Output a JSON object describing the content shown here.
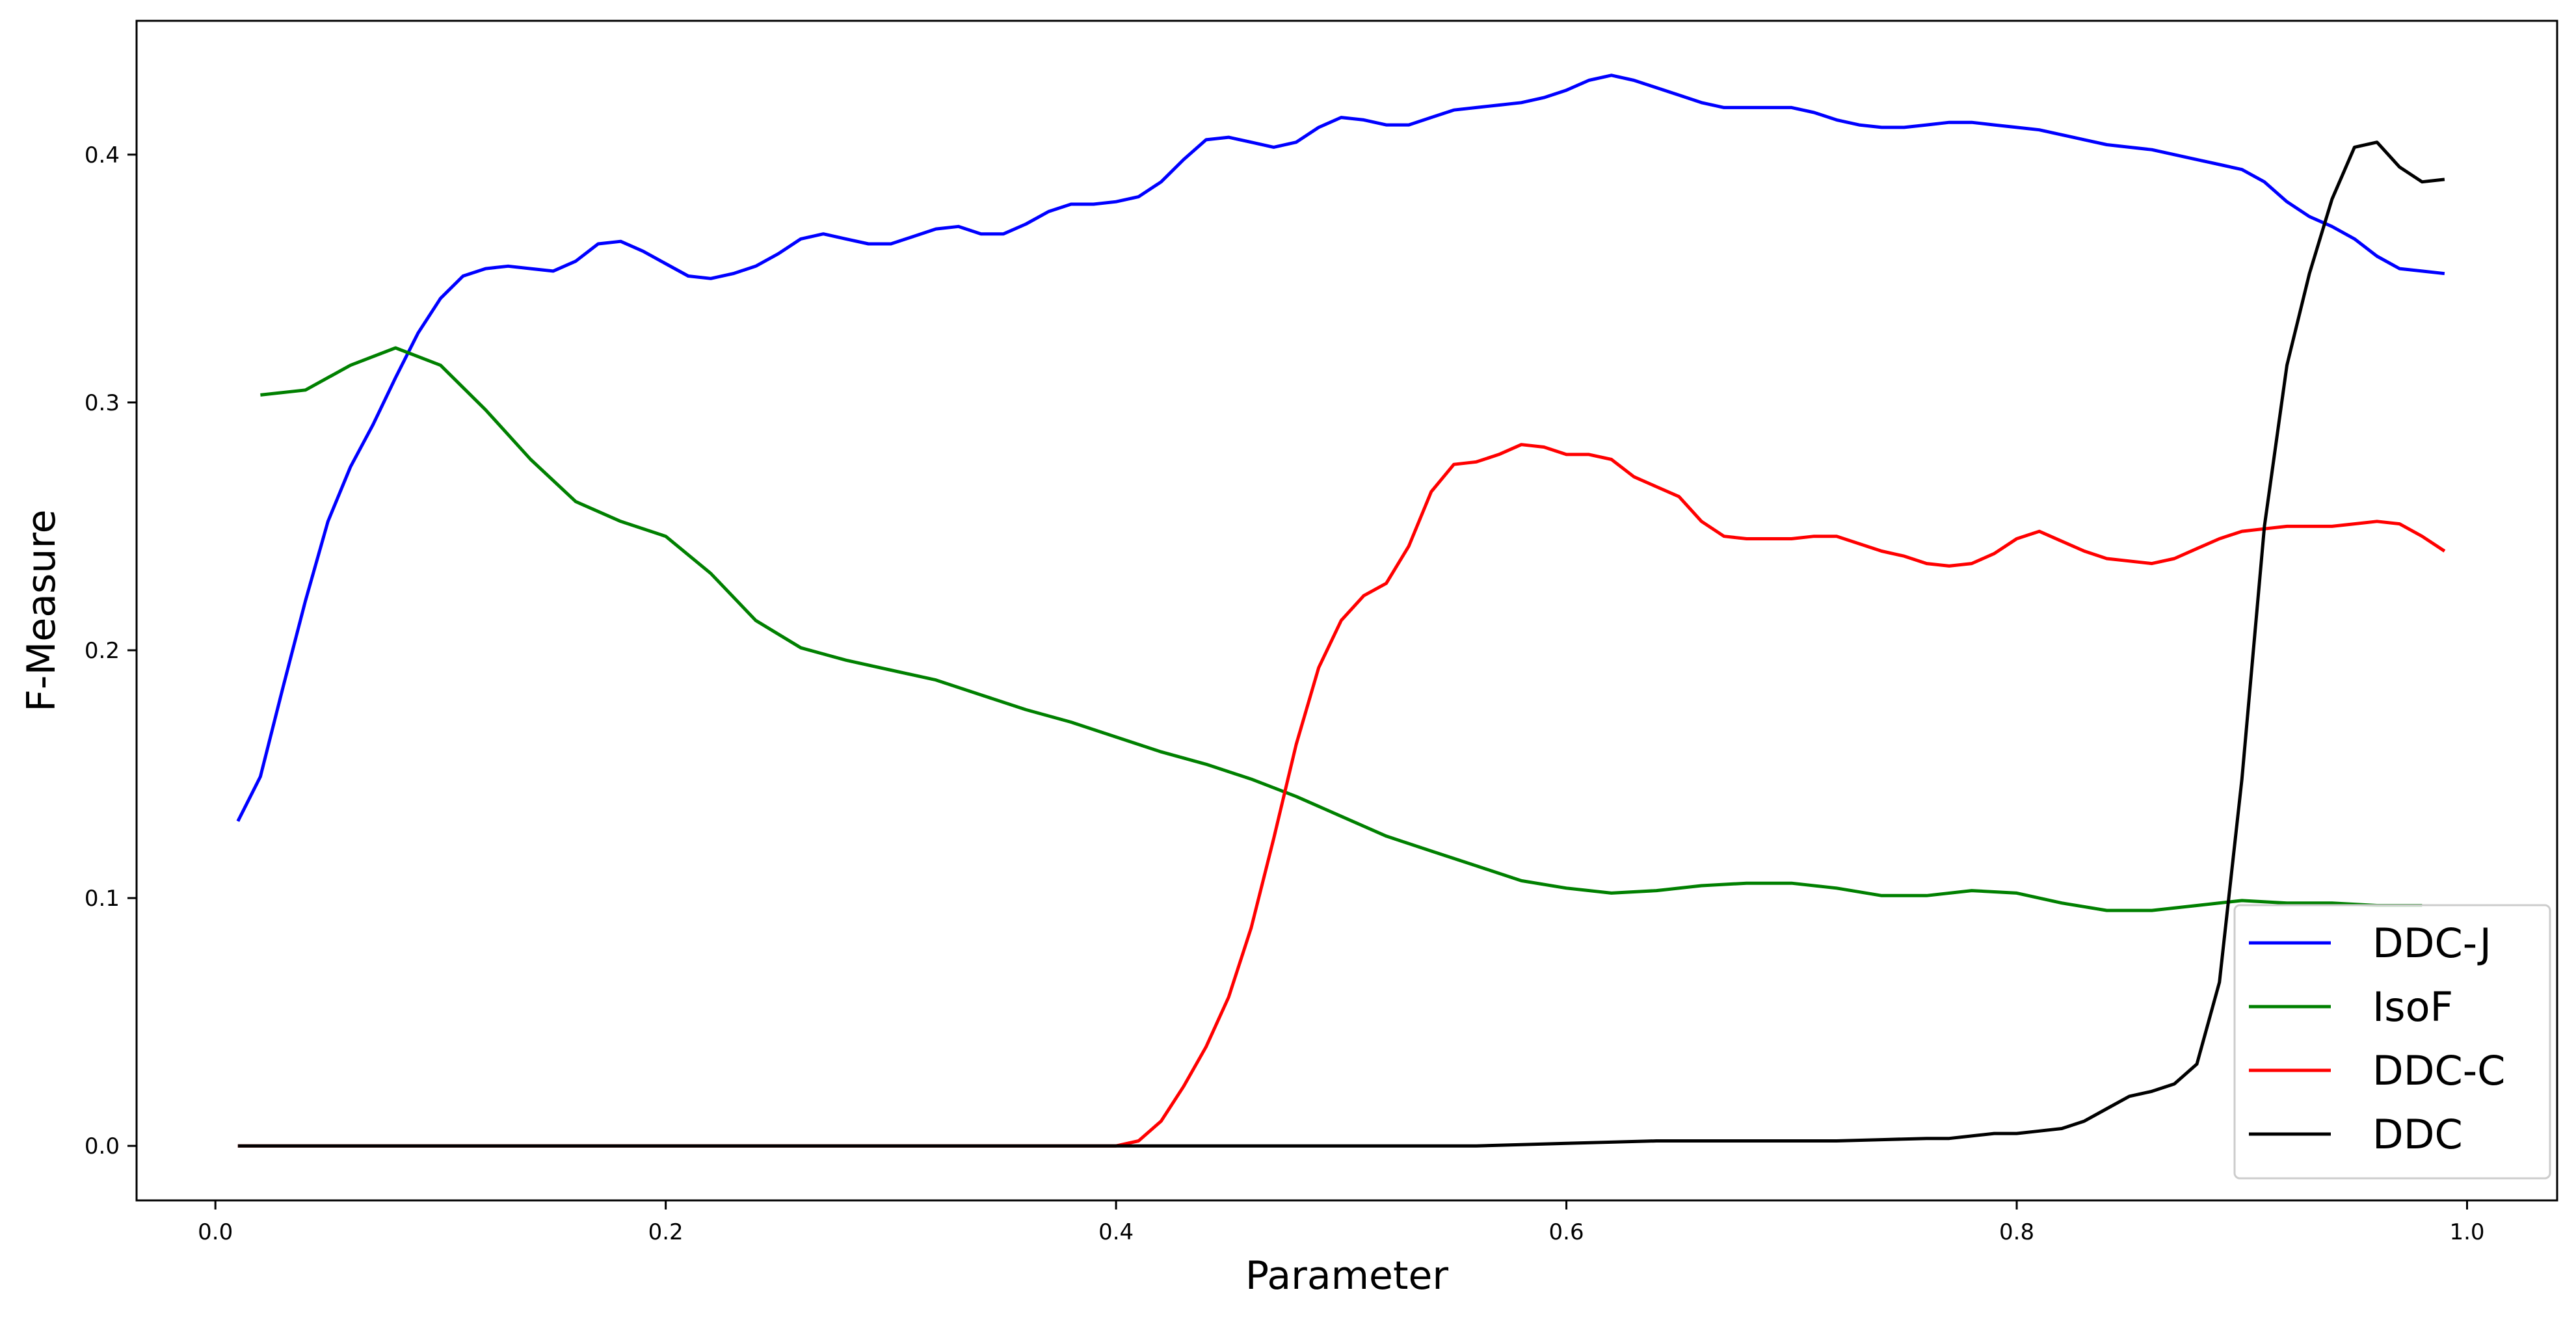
{
  "chart_data": {
    "type": "line",
    "title": "",
    "xlabel": "Parameter",
    "ylabel": "F-Measure",
    "xlim": [
      -0.035,
      1.04
    ],
    "ylim": [
      -0.022,
      0.454
    ],
    "x_ticks": [
      0.0,
      0.2,
      0.4,
      0.6,
      0.8,
      1.0
    ],
    "x_tick_labels": [
      "0.0",
      "0.2",
      "0.4",
      "0.6",
      "0.8",
      "1.0"
    ],
    "y_ticks": [
      0.0,
      0.1,
      0.2,
      0.3,
      0.4
    ],
    "y_tick_labels": [
      "0.0",
      "0.1",
      "0.2",
      "0.3",
      "0.4"
    ],
    "grid": false,
    "legend_position": "lower right",
    "series": [
      {
        "name": "DDC-J",
        "color": "#0000ff",
        "x": [
          0.01,
          0.02,
          0.03,
          0.04,
          0.05,
          0.06,
          0.07,
          0.08,
          0.09,
          0.1,
          0.11,
          0.12,
          0.13,
          0.14,
          0.15,
          0.16,
          0.17,
          0.18,
          0.19,
          0.2,
          0.21,
          0.22,
          0.23,
          0.24,
          0.25,
          0.26,
          0.27,
          0.28,
          0.29,
          0.3,
          0.31,
          0.32,
          0.33,
          0.34,
          0.35,
          0.36,
          0.37,
          0.38,
          0.39,
          0.4,
          0.41,
          0.42,
          0.43,
          0.44,
          0.45,
          0.46,
          0.47,
          0.48,
          0.49,
          0.5,
          0.51,
          0.52,
          0.53,
          0.54,
          0.55,
          0.56,
          0.57,
          0.58,
          0.59,
          0.6,
          0.61,
          0.62,
          0.63,
          0.64,
          0.65,
          0.66,
          0.67,
          0.68,
          0.69,
          0.7,
          0.71,
          0.72,
          0.73,
          0.74,
          0.75,
          0.76,
          0.77,
          0.78,
          0.79,
          0.8,
          0.81,
          0.82,
          0.83,
          0.84,
          0.85,
          0.86,
          0.87,
          0.88,
          0.89,
          0.9,
          0.91,
          0.92,
          0.93,
          0.94,
          0.95,
          0.96,
          0.97,
          0.98,
          0.99
        ],
        "values": [
          0.131,
          0.149,
          0.185,
          0.22,
          0.252,
          0.274,
          0.291,
          0.31,
          0.328,
          0.342,
          0.351,
          0.354,
          0.355,
          0.354,
          0.353,
          0.357,
          0.364,
          0.365,
          0.361,
          0.356,
          0.351,
          0.35,
          0.352,
          0.355,
          0.36,
          0.366,
          0.368,
          0.366,
          0.364,
          0.364,
          0.367,
          0.37,
          0.371,
          0.368,
          0.368,
          0.372,
          0.377,
          0.38,
          0.38,
          0.381,
          0.383,
          0.389,
          0.398,
          0.406,
          0.407,
          0.405,
          0.403,
          0.405,
          0.411,
          0.415,
          0.414,
          0.412,
          0.412,
          0.415,
          0.418,
          0.419,
          0.42,
          0.421,
          0.423,
          0.426,
          0.43,
          0.432,
          0.43,
          0.427,
          0.424,
          0.421,
          0.419,
          0.419,
          0.419,
          0.419,
          0.417,
          0.414,
          0.412,
          0.411,
          0.411,
          0.412,
          0.413,
          0.413,
          0.412,
          0.411,
          0.41,
          0.408,
          0.406,
          0.404,
          0.403,
          0.402,
          0.4,
          0.398,
          0.396,
          0.394,
          0.389,
          0.381,
          0.375,
          0.371,
          0.366,
          0.359,
          0.354,
          0.353,
          0.352
        ]
      },
      {
        "name": "IsoF",
        "color": "#008000",
        "x": [
          0.02,
          0.04,
          0.06,
          0.08,
          0.1,
          0.12,
          0.14,
          0.16,
          0.18,
          0.2,
          0.22,
          0.24,
          0.26,
          0.28,
          0.3,
          0.32,
          0.34,
          0.36,
          0.38,
          0.4,
          0.42,
          0.44,
          0.46,
          0.48,
          0.5,
          0.52,
          0.54,
          0.56,
          0.58,
          0.6,
          0.62,
          0.64,
          0.66,
          0.68,
          0.7,
          0.72,
          0.74,
          0.76,
          0.78,
          0.8,
          0.82,
          0.84,
          0.86,
          0.88,
          0.9,
          0.92,
          0.94,
          0.96,
          0.98
        ],
        "values": [
          0.303,
          0.305,
          0.315,
          0.322,
          0.315,
          0.297,
          0.277,
          0.26,
          0.252,
          0.246,
          0.231,
          0.212,
          0.201,
          0.196,
          0.192,
          0.188,
          0.182,
          0.176,
          0.171,
          0.165,
          0.159,
          0.154,
          0.148,
          0.141,
          0.133,
          0.125,
          0.119,
          0.113,
          0.107,
          0.104,
          0.102,
          0.103,
          0.105,
          0.106,
          0.106,
          0.104,
          0.101,
          0.101,
          0.103,
          0.102,
          0.098,
          0.095,
          0.095,
          0.097,
          0.099,
          0.098,
          0.098,
          0.097,
          0.097
        ]
      },
      {
        "name": "DDC-C",
        "color": "#ff0000",
        "x": [
          0.01,
          0.05,
          0.1,
          0.15,
          0.2,
          0.25,
          0.3,
          0.35,
          0.39,
          0.4,
          0.41,
          0.42,
          0.43,
          0.44,
          0.45,
          0.46,
          0.47,
          0.48,
          0.49,
          0.5,
          0.51,
          0.52,
          0.53,
          0.54,
          0.55,
          0.56,
          0.57,
          0.58,
          0.59,
          0.6,
          0.61,
          0.62,
          0.63,
          0.64,
          0.65,
          0.66,
          0.67,
          0.68,
          0.69,
          0.7,
          0.71,
          0.72,
          0.73,
          0.74,
          0.75,
          0.76,
          0.77,
          0.78,
          0.79,
          0.8,
          0.81,
          0.82,
          0.83,
          0.84,
          0.85,
          0.86,
          0.87,
          0.88,
          0.89,
          0.9,
          0.91,
          0.92,
          0.93,
          0.94,
          0.95,
          0.96,
          0.97,
          0.98,
          0.99
        ],
        "values": [
          0.0,
          0.0,
          0.0,
          0.0,
          0.0,
          0.0,
          0.0,
          0.0,
          0.0,
          0.0,
          0.002,
          0.01,
          0.024,
          0.04,
          0.06,
          0.088,
          0.124,
          0.162,
          0.193,
          0.212,
          0.222,
          0.227,
          0.242,
          0.264,
          0.275,
          0.276,
          0.279,
          0.283,
          0.282,
          0.279,
          0.279,
          0.277,
          0.27,
          0.266,
          0.262,
          0.252,
          0.246,
          0.245,
          0.245,
          0.245,
          0.246,
          0.246,
          0.243,
          0.24,
          0.238,
          0.235,
          0.234,
          0.235,
          0.239,
          0.245,
          0.248,
          0.244,
          0.24,
          0.237,
          0.236,
          0.235,
          0.237,
          0.241,
          0.245,
          0.248,
          0.249,
          0.25,
          0.25,
          0.25,
          0.251,
          0.252,
          0.251,
          0.246,
          0.24
        ]
      },
      {
        "name": "DDC",
        "color": "#000000",
        "x": [
          0.01,
          0.1,
          0.2,
          0.3,
          0.4,
          0.5,
          0.56,
          0.58,
          0.6,
          0.62,
          0.64,
          0.7,
          0.72,
          0.74,
          0.76,
          0.77,
          0.78,
          0.79,
          0.8,
          0.81,
          0.82,
          0.83,
          0.84,
          0.85,
          0.86,
          0.87,
          0.88,
          0.89,
          0.9,
          0.91,
          0.92,
          0.93,
          0.94,
          0.95,
          0.96,
          0.97,
          0.98,
          0.99
        ],
        "values": [
          0.0,
          0.0,
          0.0,
          0.0,
          0.0,
          0.0,
          0.0,
          0.0005,
          0.001,
          0.0015,
          0.002,
          0.002,
          0.002,
          0.0025,
          0.003,
          0.003,
          0.004,
          0.005,
          0.005,
          0.006,
          0.007,
          0.01,
          0.015,
          0.02,
          0.022,
          0.025,
          0.033,
          0.066,
          0.148,
          0.25,
          0.315,
          0.352,
          0.382,
          0.403,
          0.405,
          0.395,
          0.389,
          0.39
        ]
      }
    ]
  }
}
